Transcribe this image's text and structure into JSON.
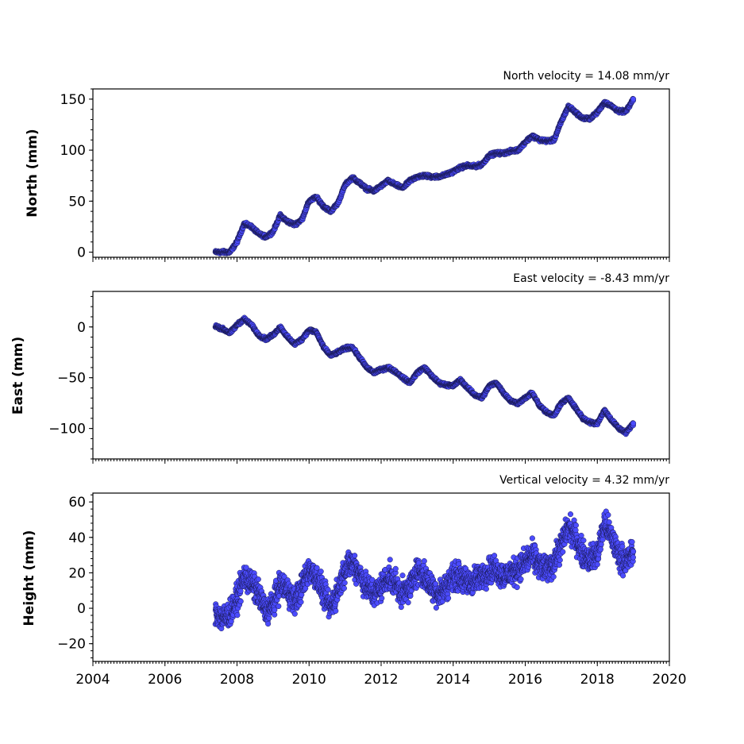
{
  "colors": {
    "marker_fill": "#4b4bff",
    "marker_edge": "#1a1a55",
    "axes": "#000000"
  },
  "chart_data": [
    {
      "type": "scatter",
      "title": "North velocity = 14.08 mm/yr",
      "xlabel": "",
      "ylabel": "North (mm)",
      "xlim": [
        2004,
        2020
      ],
      "ylim": [
        -5,
        160
      ],
      "y_ticks": [
        "0",
        "50",
        "100",
        "150"
      ],
      "x_ticks": [
        "2004",
        "2006",
        "2008",
        "2010",
        "2012",
        "2014",
        "2016",
        "2018",
        "2020"
      ],
      "x_tick_labels_visible": false,
      "grid": false,
      "series": [
        {
          "x": [
            2007.4,
            2007.6,
            2007.8,
            2008.0,
            2008.2,
            2008.4,
            2008.6,
            2008.8,
            2009.0,
            2009.2,
            2009.4,
            2009.6,
            2009.8,
            2010.0,
            2010.2,
            2010.4,
            2010.6,
            2010.8,
            2011.0,
            2011.2,
            2011.4,
            2011.6,
            2011.8,
            2012.0,
            2012.2,
            2012.4,
            2012.6,
            2012.8,
            2013.0,
            2013.2,
            2013.4,
            2013.6,
            2013.8,
            2014.0,
            2014.2,
            2014.4,
            2014.6,
            2014.8,
            2015.0,
            2015.2,
            2015.4,
            2015.6,
            2015.8,
            2016.0,
            2016.2,
            2016.4,
            2016.6,
            2016.8,
            2017.0,
            2017.2,
            2017.4,
            2017.6,
            2017.8,
            2018.0,
            2018.2,
            2018.4,
            2018.6,
            2018.8,
            2019.0
          ],
          "y": [
            0,
            0,
            0,
            10,
            28,
            25,
            18,
            15,
            20,
            36,
            30,
            27,
            32,
            50,
            54,
            45,
            40,
            48,
            66,
            73,
            68,
            62,
            60,
            65,
            70,
            66,
            63,
            70,
            74,
            75,
            74,
            74,
            76,
            79,
            83,
            85,
            84,
            86,
            95,
            97,
            97,
            99,
            100,
            108,
            114,
            110,
            109,
            110,
            128,
            143,
            137,
            131,
            131,
            137,
            147,
            143,
            138,
            138,
            150
          ]
        }
      ]
    },
    {
      "type": "scatter",
      "title": "East velocity = -8.43 mm/yr",
      "xlabel": "",
      "ylabel": "East (mm)",
      "xlim": [
        2004,
        2020
      ],
      "ylim": [
        -130,
        35
      ],
      "y_ticks": [
        "0",
        "−50",
        "−100"
      ],
      "x_ticks": [
        "2004",
        "2006",
        "2008",
        "2010",
        "2012",
        "2014",
        "2016",
        "2018",
        "2020"
      ],
      "x_tick_labels_visible": false,
      "grid": false,
      "series": [
        {
          "x": [
            2007.4,
            2007.6,
            2007.8,
            2008.0,
            2008.2,
            2008.4,
            2008.6,
            2008.8,
            2009.0,
            2009.2,
            2009.4,
            2009.6,
            2009.8,
            2010.0,
            2010.2,
            2010.4,
            2010.6,
            2010.8,
            2011.0,
            2011.2,
            2011.4,
            2011.6,
            2011.8,
            2012.0,
            2012.2,
            2012.4,
            2012.6,
            2012.8,
            2013.0,
            2013.2,
            2013.4,
            2013.6,
            2013.8,
            2014.0,
            2014.2,
            2014.4,
            2014.6,
            2014.8,
            2015.0,
            2015.2,
            2015.4,
            2015.6,
            2015.8,
            2016.0,
            2016.2,
            2016.4,
            2016.6,
            2016.8,
            2017.0,
            2017.2,
            2017.4,
            2017.6,
            2017.8,
            2018.0,
            2018.2,
            2018.4,
            2018.6,
            2018.8,
            2019.0
          ],
          "y": [
            1,
            -2,
            -6,
            2,
            8,
            2,
            -8,
            -12,
            -8,
            0,
            -10,
            -17,
            -12,
            -3,
            -5,
            -20,
            -28,
            -25,
            -21,
            -20,
            -30,
            -40,
            -45,
            -42,
            -40,
            -44,
            -50,
            -55,
            -45,
            -40,
            -48,
            -55,
            -57,
            -58,
            -52,
            -60,
            -67,
            -70,
            -58,
            -55,
            -65,
            -73,
            -75,
            -70,
            -65,
            -78,
            -84,
            -87,
            -75,
            -70,
            -80,
            -90,
            -94,
            -95,
            -82,
            -92,
            -100,
            -104,
            -95
          ]
        }
      ]
    },
    {
      "type": "scatter",
      "title": "Vertical velocity = 4.32 mm/yr",
      "xlabel": "",
      "ylabel": "Height (mm)",
      "xlim": [
        2004,
        2020
      ],
      "ylim": [
        -30,
        65
      ],
      "y_ticks": [
        "60",
        "40",
        "20",
        "0",
        "−20"
      ],
      "x_ticks": [
        "2004",
        "2006",
        "2008",
        "2010",
        "2012",
        "2014",
        "2016",
        "2018",
        "2020"
      ],
      "x_tick_labels_visible": true,
      "grid": false,
      "series": [
        {
          "x": [
            2007.4,
            2007.6,
            2007.8,
            2008.0,
            2008.2,
            2008.4,
            2008.6,
            2008.8,
            2009.0,
            2009.2,
            2009.4,
            2009.6,
            2009.8,
            2010.0,
            2010.2,
            2010.4,
            2010.6,
            2010.8,
            2011.0,
            2011.2,
            2011.4,
            2011.6,
            2011.8,
            2012.0,
            2012.2,
            2012.4,
            2012.6,
            2012.8,
            2013.0,
            2013.2,
            2013.4,
            2013.6,
            2013.8,
            2014.0,
            2014.2,
            2014.4,
            2014.6,
            2014.8,
            2015.0,
            2015.2,
            2015.4,
            2015.6,
            2015.8,
            2016.0,
            2016.2,
            2016.4,
            2016.6,
            2016.8,
            2017.0,
            2017.2,
            2017.4,
            2017.6,
            2017.8,
            2018.0,
            2018.2,
            2018.4,
            2018.6,
            2018.8,
            2019.0
          ],
          "y": [
            -2,
            -6,
            -3,
            5,
            18,
            14,
            8,
            -2,
            2,
            14,
            10,
            4,
            12,
            22,
            18,
            8,
            0,
            10,
            22,
            26,
            20,
            12,
            8,
            12,
            18,
            14,
            8,
            12,
            22,
            18,
            12,
            8,
            12,
            18,
            18,
            14,
            16,
            18,
            22,
            22,
            18,
            20,
            22,
            26,
            30,
            24,
            22,
            26,
            36,
            46,
            40,
            30,
            28,
            30,
            48,
            40,
            30,
            26,
            32
          ]
        }
      ]
    }
  ]
}
